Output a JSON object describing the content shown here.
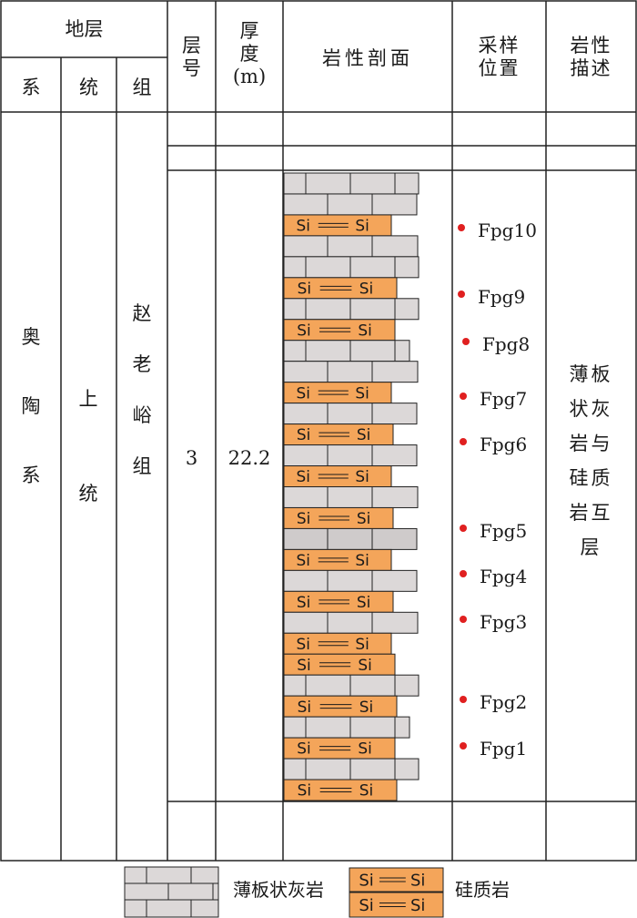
{
  "header": {
    "stratum": "地层",
    "system": "系",
    "series": "统",
    "formation": "组",
    "layer_no": [
      "层",
      "号"
    ],
    "thickness": [
      "厚",
      "度",
      "(m)"
    ],
    "profile": "岩性剖面",
    "sampling": [
      "采样",
      "位置"
    ],
    "description": [
      "岩性",
      "描述"
    ]
  },
  "body": {
    "system": [
      "奥",
      "陶",
      "系"
    ],
    "series": [
      "上",
      "统"
    ],
    "formation": [
      "赵",
      "老",
      "峪",
      "组"
    ],
    "layer_no": "3",
    "thickness": "22.2",
    "description": [
      "薄板",
      "状灰",
      "岩与",
      "硅质",
      "岩互",
      "层"
    ]
  },
  "samples": [
    "Fpg10",
    "Fpg9",
    "Fpg8",
    "Fpg7",
    "Fpg6",
    "Fpg5",
    "Fpg4",
    "Fpg3",
    "Fpg2",
    "Fpg1"
  ],
  "profile": {
    "beds": [
      "limestone",
      "limestone",
      "chert",
      "limestone",
      "limestone",
      "chert",
      "limestone",
      "chert",
      "limestone",
      "limestone",
      "chert",
      "limestone",
      "chert",
      "limestone",
      "chert",
      "limestone",
      "chert",
      "limestone",
      "chert",
      "limestone",
      "chert",
      "limestone",
      "chert",
      "chert",
      "limestone",
      "chert",
      "limestone",
      "chert",
      "limestone",
      "chert"
    ],
    "chert_symbol": "Si——Si"
  },
  "legend": {
    "limestone": "薄板状灰岩",
    "chert": "硅质岩"
  },
  "colors": {
    "limestone_fill": "#dcd8d8",
    "limestone_fill_dark": "#cfcbcb",
    "chert_fill": "#f4a55a",
    "line": "#222222",
    "sample_dot": "#e02020"
  }
}
